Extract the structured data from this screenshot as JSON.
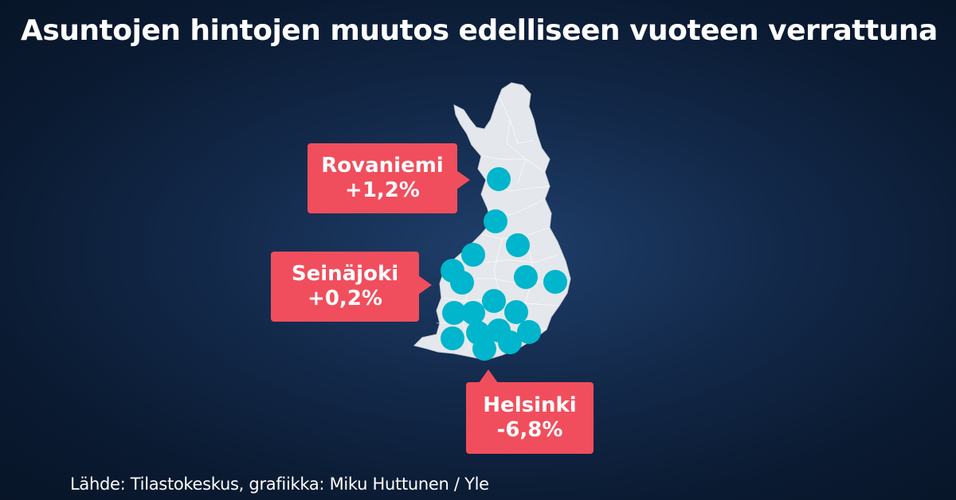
{
  "title": "Asuntojen hintojen muutos edelliseen vuoteen verrattuna",
  "source": "Lähde: Tilastokeskus, grafiikka: Miku Huttunen  / Yle",
  "colors": {
    "background": "#13294a",
    "land": "#e4e7ec",
    "marker": "#00b5cc",
    "callout": "#f04e5d",
    "text": "#ffffff"
  },
  "callouts": [
    {
      "city": "Rovaniemi",
      "change": "+1,2%"
    },
    {
      "city": "Seinäjoki",
      "change": "+0,2%"
    },
    {
      "city": "Helsinki",
      "change": "-6,8%"
    }
  ]
}
